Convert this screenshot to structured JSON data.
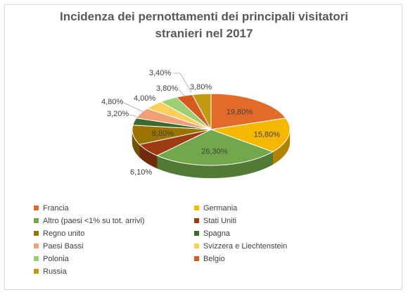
{
  "chart_data": {
    "type": "pie",
    "title": "Incidenza dei pernottamenti dei principali visitatori stranieri nel 2017",
    "title_lines": [
      "Incidenza dei pernottamenti dei principali visitatori",
      "stranieri nel 2017"
    ],
    "style": "3d-pie",
    "legend_position": "bottom",
    "slices": [
      {
        "name": "Francia",
        "value": 19.8,
        "label": "19,80%",
        "color": "#e26b2a"
      },
      {
        "name": "Germania",
        "value": 15.8,
        "label": "15,80%",
        "color": "#f5b800"
      },
      {
        "name": "Altro (paesi <1% su tot. arrivi)",
        "value": 26.3,
        "label": "26,30%",
        "color": "#72a84b"
      },
      {
        "name": "Stati Uniti",
        "value": 6.1,
        "label": "6,10%",
        "color": "#9e3b12"
      },
      {
        "name": "Regno unito",
        "value": 8.8,
        "label": "8,80%",
        "color": "#9b7400"
      },
      {
        "name": "Spagna",
        "value": 3.2,
        "label": "3,20%",
        "color": "#3d6a2a"
      },
      {
        "name": "Paesi Bassi",
        "value": 4.8,
        "label": "4,80%",
        "color": "#f0a076"
      },
      {
        "name": "Svizzera e Liechtenstein",
        "value": 4.0,
        "label": "4,00%",
        "color": "#fbd05a"
      },
      {
        "name": "Polonia",
        "value": 3.8,
        "label": "3,80%",
        "color": "#9ccf72"
      },
      {
        "name": "Belgio",
        "value": 3.4,
        "label": "3,40%",
        "color": "#d45a1e"
      },
      {
        "name": "Russia",
        "value": 3.8,
        "label": "3,80%",
        "color": "#c19a12"
      }
    ]
  }
}
